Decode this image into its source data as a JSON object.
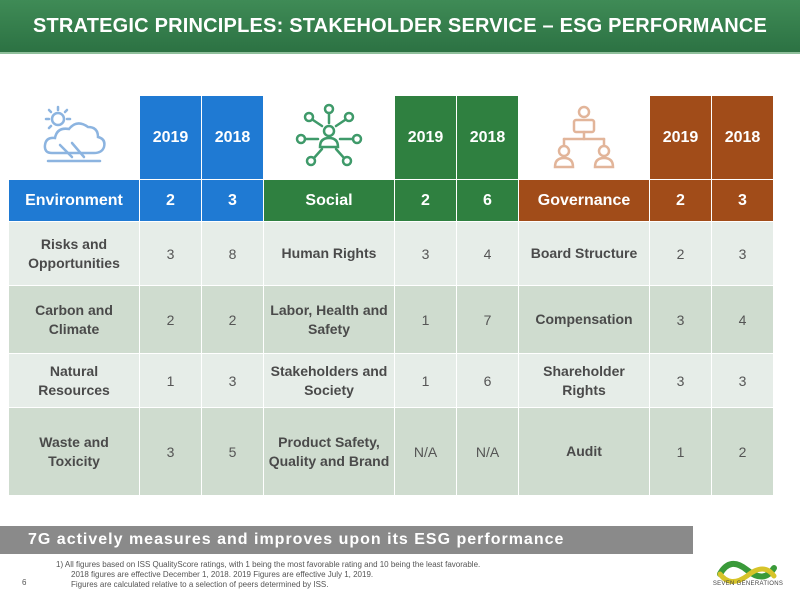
{
  "title": "STRATEGIC PRINCIPLES: STAKEHOLDER SERVICE – ESG PERFORMANCE",
  "years": [
    "2019",
    "2018"
  ],
  "categories": [
    {
      "name": "Environment",
      "icon": "cloud-sun-icon",
      "color": "#1f7ad3",
      "score2019": "2",
      "score2018": "3"
    },
    {
      "name": "Social",
      "icon": "people-network-icon",
      "color": "#2f8040",
      "score2019": "2",
      "score2018": "6"
    },
    {
      "name": "Governance",
      "icon": "org-chart-icon",
      "color": "#a14c19",
      "score2019": "2",
      "score2018": "3"
    }
  ],
  "rows": [
    {
      "env": {
        "label": "Risks and Opportunities",
        "v2019": "3",
        "v2018": "8"
      },
      "soc": {
        "label": "Human Rights",
        "v2019": "3",
        "v2018": "4"
      },
      "gov": {
        "label": "Board Structure",
        "v2019": "2",
        "v2018": "3"
      }
    },
    {
      "env": {
        "label": "Carbon and Climate",
        "v2019": "2",
        "v2018": "2"
      },
      "soc": {
        "label": "Labor, Health and Safety",
        "v2019": "1",
        "v2018": "7"
      },
      "gov": {
        "label": "Compensation",
        "v2019": "3",
        "v2018": "4"
      }
    },
    {
      "env": {
        "label": "Natural Resources",
        "v2019": "1",
        "v2018": "3"
      },
      "soc": {
        "label": "Stakeholders and Society",
        "v2019": "1",
        "v2018": "6"
      },
      "gov": {
        "label": "Shareholder Rights",
        "v2019": "3",
        "v2018": "3"
      }
    },
    {
      "env": {
        "label": "Waste and Toxicity",
        "v2019": "3",
        "v2018": "5"
      },
      "soc": {
        "label": "Product Safety, Quality and Brand",
        "v2019": "N/A",
        "v2018": "N/A"
      },
      "gov": {
        "label": "Audit",
        "v2019": "1",
        "v2018": "2"
      }
    }
  ],
  "banner": "7G actively measures and improves upon its ESG performance",
  "footnotes": [
    "1)   All figures based on ISS QualityScore ratings, with 1 being the most favorable rating and 10 being the least favorable.",
    "2018 figures are effective December 1, 2018. 2019 Figures are effective July 1, 2019.",
    "Figures are calculated relative to a selection of peers determined by ISS."
  ],
  "page_number": "6",
  "logo_text": "SEVEN GENERATIONS",
  "logo_colors": {
    "green": "#3a9a3a",
    "yellow": "#d7c42a"
  }
}
